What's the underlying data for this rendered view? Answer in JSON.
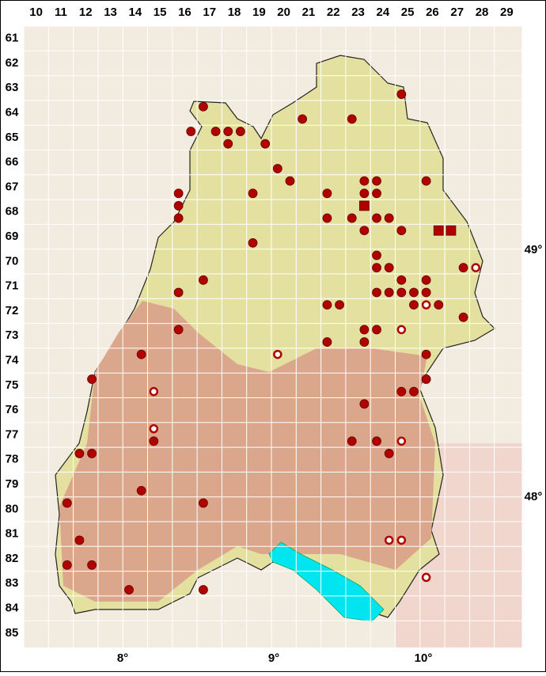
{
  "columns": [
    10,
    11,
    12,
    13,
    14,
    15,
    16,
    17,
    18,
    19,
    20,
    21,
    22,
    23,
    24,
    25,
    26,
    27,
    28,
    29
  ],
  "rows": [
    61,
    62,
    63,
    64,
    65,
    66,
    67,
    68,
    69,
    70,
    71,
    72,
    73,
    74,
    75,
    76,
    77,
    78,
    79,
    80,
    81,
    82,
    83,
    84,
    85
  ],
  "longitude_labels": [
    "8°",
    "9°",
    "10°"
  ],
  "latitude_labels": [
    "49°",
    "48°"
  ],
  "records": [
    {
      "x": 17.25,
      "y": 64.25,
      "symbol": "filled"
    },
    {
      "x": 25.25,
      "y": 63.75,
      "symbol": "filled"
    },
    {
      "x": 16.75,
      "y": 65.25,
      "symbol": "filled"
    },
    {
      "x": 17.75,
      "y": 65.25,
      "symbol": "filled"
    },
    {
      "x": 18.25,
      "y": 65.25,
      "symbol": "filled"
    },
    {
      "x": 18.75,
      "y": 65.25,
      "symbol": "filled"
    },
    {
      "x": 18.25,
      "y": 65.75,
      "symbol": "filled"
    },
    {
      "x": 19.75,
      "y": 65.75,
      "symbol": "filled"
    },
    {
      "x": 21.25,
      "y": 64.75,
      "symbol": "filled"
    },
    {
      "x": 23.25,
      "y": 64.75,
      "symbol": "filled"
    },
    {
      "x": 20.25,
      "y": 66.75,
      "symbol": "filled"
    },
    {
      "x": 20.75,
      "y": 67.25,
      "symbol": "filled"
    },
    {
      "x": 26.25,
      "y": 67.25,
      "symbol": "filled"
    },
    {
      "x": 23.75,
      "y": 67.25,
      "symbol": "filled"
    },
    {
      "x": 24.25,
      "y": 67.25,
      "symbol": "filled"
    },
    {
      "x": 16.25,
      "y": 67.75,
      "symbol": "filled"
    },
    {
      "x": 19.25,
      "y": 67.75,
      "symbol": "filled"
    },
    {
      "x": 22.25,
      "y": 67.75,
      "symbol": "filled"
    },
    {
      "x": 23.75,
      "y": 67.75,
      "symbol": "filled"
    },
    {
      "x": 24.25,
      "y": 67.75,
      "symbol": "filled"
    },
    {
      "x": 23.75,
      "y": 68.25,
      "symbol": "square"
    },
    {
      "x": 16.25,
      "y": 68.25,
      "symbol": "filled"
    },
    {
      "x": 16.25,
      "y": 68.75,
      "symbol": "filled"
    },
    {
      "x": 22.25,
      "y": 68.75,
      "symbol": "filled"
    },
    {
      "x": 23.25,
      "y": 68.75,
      "symbol": "filled"
    },
    {
      "x": 24.25,
      "y": 68.75,
      "symbol": "filled"
    },
    {
      "x": 24.75,
      "y": 68.75,
      "symbol": "filled"
    },
    {
      "x": 23.75,
      "y": 69.25,
      "symbol": "filled"
    },
    {
      "x": 25.25,
      "y": 69.25,
      "symbol": "filled"
    },
    {
      "x": 26.75,
      "y": 69.25,
      "symbol": "square"
    },
    {
      "x": 27.25,
      "y": 69.25,
      "symbol": "square"
    },
    {
      "x": 19.25,
      "y": 69.75,
      "symbol": "filled"
    },
    {
      "x": 24.25,
      "y": 70.25,
      "symbol": "filled"
    },
    {
      "x": 24.25,
      "y": 70.75,
      "symbol": "filled"
    },
    {
      "x": 24.75,
      "y": 70.75,
      "symbol": "filled"
    },
    {
      "x": 27.75,
      "y": 70.75,
      "symbol": "filled"
    },
    {
      "x": 28.25,
      "y": 70.75,
      "symbol": "open"
    },
    {
      "x": 17.25,
      "y": 71.25,
      "symbol": "filled"
    },
    {
      "x": 25.25,
      "y": 71.25,
      "symbol": "filled"
    },
    {
      "x": 26.25,
      "y": 71.25,
      "symbol": "filled"
    },
    {
      "x": 16.25,
      "y": 71.75,
      "symbol": "filled"
    },
    {
      "x": 24.25,
      "y": 71.75,
      "symbol": "filled"
    },
    {
      "x": 24.75,
      "y": 71.75,
      "symbol": "filled"
    },
    {
      "x": 25.25,
      "y": 71.75,
      "symbol": "filled"
    },
    {
      "x": 25.75,
      "y": 71.75,
      "symbol": "filled"
    },
    {
      "x": 26.25,
      "y": 71.75,
      "symbol": "filled"
    },
    {
      "x": 22.25,
      "y": 72.25,
      "symbol": "filled"
    },
    {
      "x": 22.75,
      "y": 72.25,
      "symbol": "filled"
    },
    {
      "x": 25.75,
      "y": 72.25,
      "symbol": "filled"
    },
    {
      "x": 26.25,
      "y": 72.25,
      "symbol": "open"
    },
    {
      "x": 26.75,
      "y": 72.25,
      "symbol": "filled"
    },
    {
      "x": 27.75,
      "y": 72.75,
      "symbol": "filled"
    },
    {
      "x": 16.25,
      "y": 73.25,
      "symbol": "filled"
    },
    {
      "x": 23.75,
      "y": 73.25,
      "symbol": "filled"
    },
    {
      "x": 24.25,
      "y": 73.25,
      "symbol": "filled"
    },
    {
      "x": 25.25,
      "y": 73.25,
      "symbol": "open"
    },
    {
      "x": 22.25,
      "y": 73.75,
      "symbol": "filled"
    },
    {
      "x": 23.75,
      "y": 73.75,
      "symbol": "filled"
    },
    {
      "x": 14.75,
      "y": 74.25,
      "symbol": "filled"
    },
    {
      "x": 20.25,
      "y": 74.25,
      "symbol": "open"
    },
    {
      "x": 26.25,
      "y": 74.25,
      "symbol": "filled"
    },
    {
      "x": 12.75,
      "y": 75.25,
      "symbol": "filled"
    },
    {
      "x": 26.25,
      "y": 75.25,
      "symbol": "filled"
    },
    {
      "x": 15.25,
      "y": 75.75,
      "symbol": "open"
    },
    {
      "x": 25.25,
      "y": 75.75,
      "symbol": "filled"
    },
    {
      "x": 25.75,
      "y": 75.75,
      "symbol": "filled"
    },
    {
      "x": 23.75,
      "y": 76.25,
      "symbol": "filled"
    },
    {
      "x": 15.25,
      "y": 77.25,
      "symbol": "open"
    },
    {
      "x": 15.25,
      "y": 77.75,
      "symbol": "filled"
    },
    {
      "x": 23.25,
      "y": 77.75,
      "symbol": "filled"
    },
    {
      "x": 24.25,
      "y": 77.75,
      "symbol": "filled"
    },
    {
      "x": 25.25,
      "y": 77.75,
      "symbol": "open"
    },
    {
      "x": 12.25,
      "y": 78.25,
      "symbol": "filled"
    },
    {
      "x": 12.75,
      "y": 78.25,
      "symbol": "filled"
    },
    {
      "x": 24.75,
      "y": 78.25,
      "symbol": "filled"
    },
    {
      "x": 14.75,
      "y": 79.75,
      "symbol": "filled"
    },
    {
      "x": 11.75,
      "y": 80.25,
      "symbol": "filled"
    },
    {
      "x": 17.25,
      "y": 80.25,
      "symbol": "filled"
    },
    {
      "x": 12.25,
      "y": 81.75,
      "symbol": "filled"
    },
    {
      "x": 24.75,
      "y": 81.75,
      "symbol": "open"
    },
    {
      "x": 25.25,
      "y": 81.75,
      "symbol": "open"
    },
    {
      "x": 11.75,
      "y": 82.75,
      "symbol": "filled"
    },
    {
      "x": 12.75,
      "y": 82.75,
      "symbol": "filled"
    },
    {
      "x": 26.25,
      "y": 83.25,
      "symbol": "open"
    },
    {
      "x": 14.25,
      "y": 83.75,
      "symbol": "filled"
    },
    {
      "x": 17.25,
      "y": 83.75,
      "symbol": "filled"
    }
  ]
}
